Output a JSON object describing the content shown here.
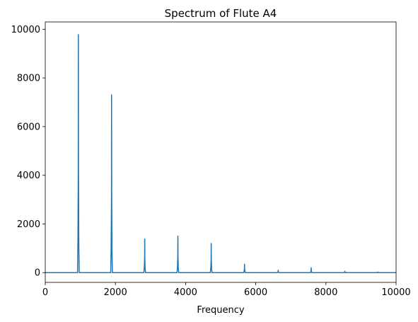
{
  "chart_data": {
    "type": "line",
    "title": "Spectrum of Flute A4",
    "xlabel": "Frequency",
    "ylabel": "",
    "xlim": [
      0,
      10000
    ],
    "ylim": [
      -400,
      10300
    ],
    "x_ticks": [
      0,
      2000,
      4000,
      6000,
      8000,
      10000
    ],
    "y_ticks": [
      0,
      2000,
      4000,
      6000,
      8000,
      10000
    ],
    "x_tick_labels": [
      "0",
      "2000",
      "4000",
      "6000",
      "8000",
      "10000"
    ],
    "y_tick_labels": [
      "0",
      "2000",
      "4000",
      "6000",
      "8000",
      "10000"
    ],
    "grid": false,
    "line_color": "#1f77b4",
    "series": [
      {
        "peaks": [
          {
            "x": 944,
            "y": 9780
          },
          {
            "x": 1890,
            "y": 7300
          },
          {
            "x": 2835,
            "y": 1380
          },
          {
            "x": 3780,
            "y": 1500
          },
          {
            "x": 4730,
            "y": 1200
          },
          {
            "x": 5680,
            "y": 350
          },
          {
            "x": 6640,
            "y": 100
          },
          {
            "x": 7580,
            "y": 200
          },
          {
            "x": 8540,
            "y": 60
          },
          {
            "x": 9480,
            "y": 30
          }
        ]
      }
    ]
  }
}
